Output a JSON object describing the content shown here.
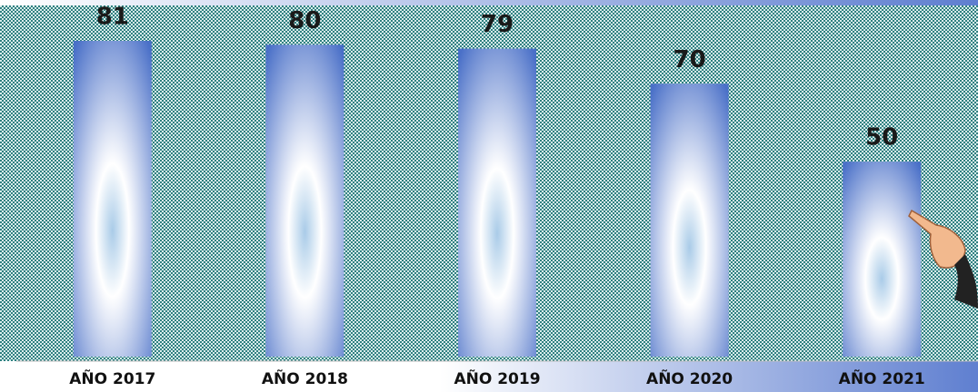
{
  "chart_data": {
    "type": "bar",
    "categories": [
      "AÑO 2017",
      "AÑO 2018",
      "AÑO 2019",
      "AÑO 2020",
      "AÑO 2021"
    ],
    "values": [
      81,
      80,
      79,
      70,
      50
    ],
    "color": "#4a70c8"
  }
}
